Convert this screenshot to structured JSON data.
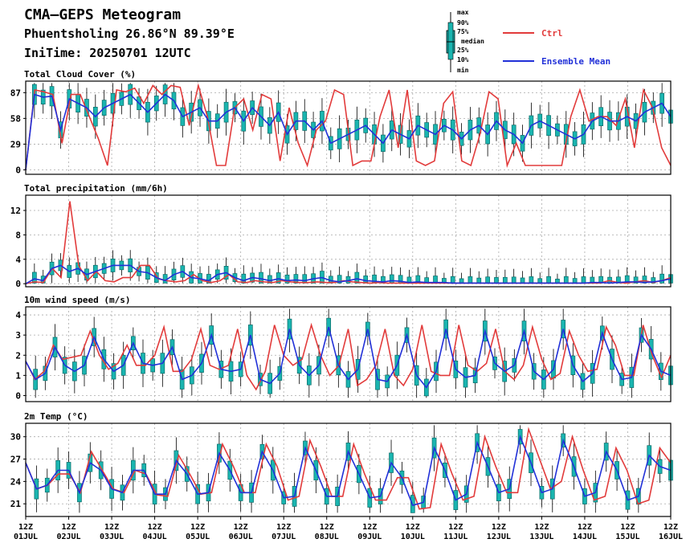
{
  "header": {
    "title": "CMA—GEPS Meteogram",
    "location": "Phuentsholing 26.86°N 89.39°E",
    "init_time": "IniTime: 20250701 12UTC"
  },
  "legend": {
    "box_labels": [
      "max",
      "90%",
      "75%",
      "median",
      "25%",
      "10%",
      "min"
    ],
    "ctrl_label": "Ctrl",
    "mean_label": "Ensemble Mean",
    "colors": {
      "ctrl": "#e23b3b",
      "mean": "#2130d8",
      "box": "#1ab5b0",
      "boxdark": "#0b6a66"
    }
  },
  "x_axis": {
    "ticks": [
      {
        "top": "12Z",
        "bottom": "01JUL"
      },
      {
        "top": "12Z",
        "bottom": "02JUL"
      },
      {
        "top": "12Z",
        "bottom": "03JUL"
      },
      {
        "top": "12Z",
        "bottom": "04JUL"
      },
      {
        "top": "12Z",
        "bottom": "05JUL"
      },
      {
        "top": "12Z",
        "bottom": "06JUL"
      },
      {
        "top": "12Z",
        "bottom": "07JUL"
      },
      {
        "top": "12Z",
        "bottom": "08JUL"
      },
      {
        "top": "12Z",
        "bottom": "09JUL"
      },
      {
        "top": "12Z",
        "bottom": "10JUL"
      },
      {
        "top": "12Z",
        "bottom": "11JUL"
      },
      {
        "top": "12Z",
        "bottom": "12JUL"
      },
      {
        "top": "12Z",
        "bottom": "13JUL"
      },
      {
        "top": "12Z",
        "bottom": "14JUL"
      },
      {
        "top": "12Z",
        "bottom": "15JUL"
      },
      {
        "top": "12Z",
        "bottom": "16JUL"
      }
    ]
  },
  "chart_data": [
    {
      "type": "line",
      "title": "Total Cloud Cover (%)",
      "yticks": [
        "87",
        "58",
        "29",
        "0"
      ],
      "ylim": [
        -5,
        100
      ],
      "yticks_values": [
        87,
        58,
        29,
        0
      ],
      "series": [
        {
          "name": "Ctrl",
          "values": [
            0,
            90,
            88,
            85,
            30,
            85,
            85,
            60,
            35,
            5,
            90,
            88,
            92,
            75,
            95,
            85,
            95,
            93,
            50,
            95,
            60,
            5,
            5,
            70,
            80,
            45,
            85,
            80,
            10,
            70,
            30,
            5,
            45,
            55,
            90,
            85,
            5,
            10,
            10,
            60,
            90,
            25,
            90,
            10,
            5,
            10,
            75,
            88,
            10,
            5,
            40,
            88,
            80,
            5,
            30,
            5,
            5,
            5,
            5,
            5,
            60,
            90,
            55,
            60,
            60,
            50,
            80,
            25,
            90,
            70,
            25,
            5
          ]
        },
        {
          "name": "Ensemble Mean",
          "values": [
            0,
            85,
            82,
            83,
            45,
            80,
            75,
            70,
            60,
            70,
            75,
            80,
            85,
            75,
            65,
            75,
            85,
            78,
            60,
            65,
            70,
            55,
            55,
            65,
            70,
            55,
            70,
            60,
            50,
            65,
            40,
            55,
            55,
            45,
            55,
            30,
            35,
            40,
            45,
            50,
            40,
            30,
            45,
            40,
            35,
            50,
            45,
            40,
            50,
            45,
            35,
            45,
            50,
            40,
            55,
            45,
            40,
            30,
            50,
            55,
            50,
            45,
            40,
            35,
            40,
            55,
            60,
            55,
            55,
            60,
            55,
            65,
            70,
            75,
            60
          ]
        }
      ]
    },
    {
      "type": "line",
      "title": "Total precipitation (mm/6h)",
      "yticks": [
        "12",
        "8",
        "4",
        "0"
      ],
      "ylim": [
        -0.5,
        14.5
      ],
      "yticks_values": [
        12,
        8,
        4,
        0
      ],
      "series": [
        {
          "name": "Ctrl",
          "values": [
            0,
            0.3,
            0.2,
            2.5,
            1,
            13.5,
            3,
            0.5,
            2,
            0.5,
            0.3,
            1,
            1,
            3,
            3,
            0.8,
            0.5,
            0.3,
            0.5,
            1.5,
            0.5,
            0.2,
            0.5,
            1.5,
            0.3,
            0.2,
            0.5,
            0.3,
            0.2,
            0.5,
            0.3,
            0.2,
            0.2,
            0.3,
            0.2,
            0.2,
            0.5,
            0.3,
            0.2,
            0.1,
            0.2,
            0.1,
            0.1,
            0.1,
            0.1,
            0.1,
            0.1,
            0.1,
            0.1,
            0.1,
            0.1,
            0.1,
            0.1,
            0.1,
            0.1,
            0.1,
            0.1,
            0.1,
            0.1,
            0.1,
            0.1,
            0.1,
            0.1,
            0.1,
            0.1,
            0.1,
            0.5,
            0.2,
            0.1,
            0.3,
            0.5,
            0.2,
            0.5,
            1
          ]
        },
        {
          "name": "Ensemble Mean",
          "values": [
            0,
            0.8,
            0.5,
            2.5,
            3,
            2,
            2.5,
            1.5,
            2,
            2.5,
            3,
            3,
            3,
            2,
            1.8,
            1,
            0.5,
            1.5,
            2,
            1,
            0.8,
            0.5,
            1.5,
            1.8,
            1,
            0.5,
            1,
            0.8,
            0.5,
            0.8,
            0.5,
            0.6,
            0.5,
            0.8,
            1,
            0.5,
            0.3,
            0.5,
            0.8,
            0.5,
            0.4,
            0.3,
            0.5,
            0.4,
            0.2,
            0.3,
            0.2,
            0.2,
            0.2,
            0.1,
            0.1,
            0.1,
            0.1,
            0.1,
            0.1,
            0.1,
            0.1,
            0.1,
            0.1,
            0.1,
            0.1,
            0.1,
            0.1,
            0.1,
            0.1,
            0.2,
            0.2,
            0.1,
            0.2,
            0.3,
            0.3,
            0.2,
            0.3,
            0.5,
            0.8
          ]
        }
      ]
    },
    {
      "type": "line",
      "title": "10m wind speed (m/s)",
      "yticks": [
        "4",
        "3",
        "2",
        "1",
        "0"
      ],
      "ylim": [
        -0.3,
        4.4
      ],
      "yticks_values": [
        4,
        3,
        2,
        1,
        0
      ],
      "series": [
        {
          "name": "Ctrl",
          "values": [
            1.7,
            0.8,
            1.2,
            2.5,
            1.8,
            1.9,
            2,
            3.2,
            2,
            1.3,
            1.6,
            2.5,
            1.5,
            1.5,
            2,
            3.4,
            1.2,
            1.2,
            1.8,
            3.3,
            1.5,
            1.3,
            1.5,
            3.3,
            1,
            0.3,
            1.2,
            3.5,
            2,
            1.5,
            1.8,
            3.5,
            2,
            1,
            1.5,
            3.3,
            0.5,
            0.8,
            1.5,
            3.3,
            1,
            0.5,
            1.3,
            3.5,
            1.2,
            1,
            1,
            3.5,
            1.5,
            1.2,
            1.6,
            3.3,
            1.2,
            0.8,
            1.5,
            3.4,
            1.8,
            0.8,
            1.1,
            3.2,
            2,
            1.2,
            1.3,
            3.4,
            2.5,
            1,
            1,
            3.5,
            2,
            0.9,
            2
          ]
        },
        {
          "name": "Ensemble Mean",
          "values": [
            1.7,
            0.8,
            1.1,
            2.4,
            1.5,
            1.2,
            1.5,
            2.9,
            1.8,
            1.2,
            1.5,
            2.6,
            1.6,
            1.5,
            1.6,
            2.4,
            0.8,
            1,
            1.6,
            3,
            1.3,
            1.2,
            1.3,
            3,
            0.8,
            0.6,
            1.1,
            3.3,
            1.5,
            1,
            1.5,
            3.4,
            1.5,
            0.8,
            1.3,
            3.3,
            0.8,
            0.7,
            1.5,
            3,
            1,
            0.4,
            1.2,
            3.3,
            1.3,
            0.9,
            1,
            3.2,
            1.6,
            1.2,
            1.5,
            3.2,
            1.2,
            0.8,
            1.3,
            3.3,
            1.5,
            0.7,
            1.1,
            3.1,
            1.8,
            0.8,
            0.9,
            3,
            2.3,
            1.2,
            1
          ]
        }
      ]
    },
    {
      "type": "line",
      "title": "2m Temp (°C)",
      "yticks": [
        "30",
        "27",
        "24",
        "21"
      ],
      "ylim": [
        19.3,
        31.8
      ],
      "yticks_values": [
        30,
        27,
        24,
        21
      ],
      "series": [
        {
          "name": "Ctrl",
          "values": [
            26.5,
            23,
            23.5,
            25,
            25,
            22.5,
            28,
            25.5,
            23,
            22.5,
            25.5,
            25,
            22.2,
            22,
            27.5,
            25,
            22.3,
            22.5,
            29,
            26,
            22.5,
            22.5,
            29,
            26,
            21.5,
            22,
            29.5,
            26,
            22,
            22,
            29,
            25,
            21.5,
            21.5,
            24.5,
            24.5,
            20.3,
            20.5,
            29,
            25,
            21.5,
            22,
            30,
            26,
            22.5,
            22.5,
            31,
            27,
            23,
            24,
            30,
            25.5,
            21.5,
            22,
            28.5,
            25.5,
            21,
            21.5,
            28.5,
            26.5
          ]
        },
        {
          "name": "Ensemble Mean",
          "values": [
            26.5,
            23,
            23.5,
            25.5,
            25.5,
            22.5,
            26.5,
            25.5,
            23,
            22.5,
            25.5,
            25.5,
            22.3,
            22.3,
            26.8,
            25,
            22.3,
            22.5,
            27.8,
            25.5,
            22.5,
            22.5,
            28,
            25.5,
            21.8,
            22,
            28.5,
            25.5,
            22,
            22,
            28,
            25,
            21.8,
            22,
            26.5,
            24.5,
            20.8,
            21.2,
            28.5,
            25.5,
            21.5,
            22.3,
            29.2,
            26,
            22.5,
            23,
            30,
            26.5,
            22.5,
            23,
            29.5,
            26,
            22,
            22.5,
            28,
            25.5,
            21.5,
            22,
            27.5,
            26,
            25.5
          ]
        }
      ]
    }
  ]
}
